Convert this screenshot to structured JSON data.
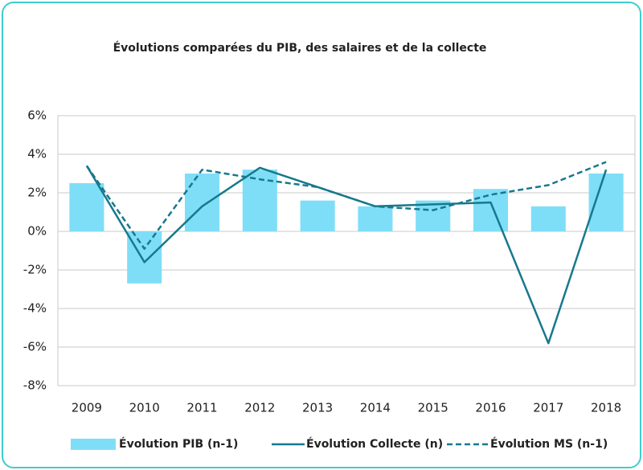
{
  "chart_data": {
    "type": "bar",
    "title": "Évolutions comparées du PIB, des salaires et de la collecte",
    "categories": [
      "2009",
      "2010",
      "2011",
      "2012",
      "2013",
      "2014",
      "2015",
      "2016",
      "2017",
      "2018"
    ],
    "series": [
      {
        "name": "Évolution PIB (n-1)",
        "type": "bar",
        "color": "#7fdef7",
        "values": [
          2.5,
          -2.7,
          3.0,
          3.2,
          1.6,
          1.3,
          1.6,
          2.2,
          1.3,
          3.0
        ]
      },
      {
        "name": "Évolution Collecte (n)",
        "type": "line",
        "color": "#17798c",
        "dashed": false,
        "values": [
          3.4,
          -1.6,
          1.3,
          3.3,
          2.3,
          1.3,
          1.4,
          1.5,
          -5.8,
          3.2
        ]
      },
      {
        "name": "Évolution MS (n-1)",
        "type": "line",
        "color": "#17798c",
        "dashed": true,
        "values": [
          3.4,
          -0.9,
          3.2,
          2.7,
          2.3,
          1.3,
          1.1,
          1.9,
          2.4,
          3.6
        ]
      }
    ],
    "ylim": [
      -8,
      6
    ],
    "yticks": [
      {
        "value": -8,
        "label": "-8%"
      },
      {
        "value": -6,
        "label": "-6%"
      },
      {
        "value": -4,
        "label": "-4%"
      },
      {
        "value": -2,
        "label": "-2%"
      },
      {
        "value": 0,
        "label": "0%"
      },
      {
        "value": 2,
        "label": "2%"
      },
      {
        "value": 4,
        "label": "4%"
      },
      {
        "value": 6,
        "label": "6%"
      }
    ],
    "grid": true,
    "legend": "bottom"
  }
}
